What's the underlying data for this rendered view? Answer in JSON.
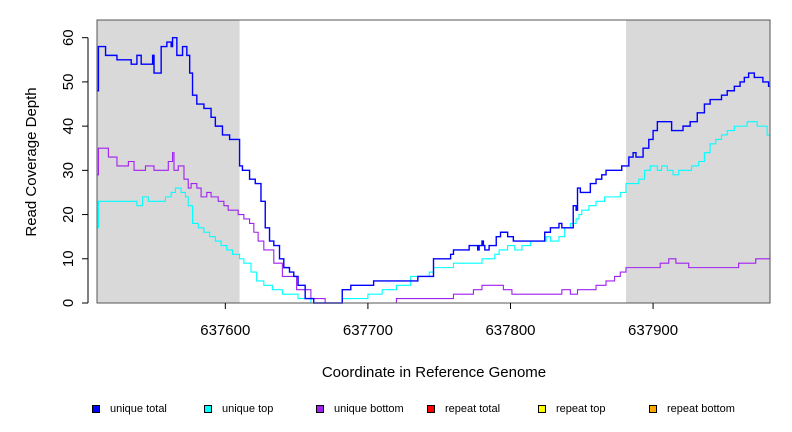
{
  "chart_data": {
    "type": "line",
    "title": "",
    "xlabel": "Coordinate in Reference Genome",
    "ylabel": "Read Coverage Depth",
    "xlim": [
      637510,
      637982
    ],
    "ylim": [
      0,
      64
    ],
    "xticks": [
      637600,
      637700,
      637800,
      637900
    ],
    "xtick_labels": [
      "637600",
      "637700",
      "637800",
      "637900"
    ],
    "yticks": [
      0,
      10,
      20,
      30,
      40,
      50,
      60
    ],
    "ytick_labels": [
      "0",
      "10",
      "20",
      "30",
      "40",
      "50",
      "60"
    ],
    "shaded_regions": [
      {
        "x_start": 637510,
        "x_end": 637610,
        "color": "#d9d9d9"
      },
      {
        "x_start": 637881,
        "x_end": 637982,
        "color": "#d9d9d9"
      }
    ],
    "series": [
      {
        "name": "unique total",
        "color": "#0000ff",
        "x": [
          637510,
          637511,
          637516,
          637524,
          637534,
          637538,
          637541,
          637549,
          637550,
          637555,
          637559,
          637562,
          637563,
          637566,
          637570,
          637573,
          637575,
          637577,
          637580,
          637585,
          637590,
          637593,
          637598,
          637603,
          637605,
          637610,
          637612,
          637617,
          637621,
          637625,
          637628,
          637631,
          637634,
          637638,
          637641,
          637645,
          637648,
          637651,
          637656,
          637660,
          637662,
          637667,
          637672,
          637677,
          637682,
          637685,
          637688,
          637691,
          637696,
          637704,
          637710,
          637719,
          637725,
          637735,
          637745,
          637746,
          637758,
          637760,
          637771,
          637777,
          637778,
          637780,
          637781,
          637782,
          637785,
          637790,
          637793,
          637798,
          637802,
          637810,
          637819,
          637824,
          637828,
          637834,
          637836,
          637838,
          637844,
          637846,
          637847,
          637849,
          637851,
          637856,
          637860,
          637864,
          637867,
          637871,
          637878,
          637880,
          637883,
          637886,
          637888,
          637893,
          637897,
          637900,
          637903,
          637908,
          637913,
          637917,
          637921,
          637926,
          637931,
          637936,
          637940,
          637944,
          637948,
          637952,
          637957,
          637961,
          637964,
          637967,
          637971,
          637977,
          637981,
          637982
        ],
        "values": [
          48,
          58,
          56,
          55,
          54,
          56,
          54,
          56,
          52,
          58,
          59,
          58,
          60,
          56,
          58,
          56,
          52,
          47,
          45,
          44,
          42,
          40,
          38,
          37,
          37,
          31,
          30,
          28,
          27,
          23,
          17,
          14,
          13,
          10,
          8,
          7,
          6,
          4,
          1,
          1,
          0,
          0,
          0,
          0,
          3,
          3,
          4,
          4,
          4,
          5,
          5,
          5,
          5,
          6,
          6,
          10,
          11,
          12,
          13,
          12,
          13,
          14,
          13,
          12,
          13,
          15,
          16,
          15,
          14,
          14,
          14,
          16,
          17,
          18,
          17,
          17,
          22,
          21,
          26,
          25,
          25,
          27,
          28,
          29,
          30,
          30,
          31,
          31,
          33,
          34,
          33,
          35,
          37,
          39,
          41,
          41,
          39,
          39,
          40,
          41,
          43,
          45,
          46,
          46,
          47,
          48,
          49,
          50,
          51,
          52,
          51,
          50,
          49,
          49
        ]
      },
      {
        "name": "unique top",
        "color": "#00ffff",
        "x": [
          637510,
          637511,
          637520,
          637530,
          637535,
          637538,
          637542,
          637546,
          637550,
          637558,
          637562,
          637565,
          637569,
          637572,
          637574,
          637577,
          637581,
          637585,
          637589,
          637593,
          637597,
          637601,
          637605,
          637610,
          637613,
          637618,
          637622,
          637627,
          637633,
          637640,
          637651,
          637660,
          637670,
          637682,
          637688,
          637700,
          637710,
          637720,
          637730,
          637743,
          637746,
          637760,
          637771,
          637780,
          637787,
          637789,
          637792,
          637795,
          637798,
          637803,
          637808,
          637814,
          637818,
          637825,
          637828,
          637832,
          637834,
          637838,
          637842,
          637846,
          637848,
          637850,
          637853,
          637855,
          637860,
          637866,
          637872,
          637877,
          637881,
          637886,
          637890,
          637894,
          637898,
          637903,
          637906,
          637910,
          637914,
          637918,
          637922,
          637927,
          637932,
          637936,
          637940,
          637944,
          637948,
          637952,
          637957,
          637961,
          637966,
          637970,
          637973,
          637977,
          637980,
          637982
        ],
        "values": [
          17,
          23,
          23,
          23,
          23,
          22,
          24,
          23,
          23,
          24,
          25,
          26,
          25,
          24,
          22,
          18,
          17,
          16,
          15,
          14,
          13,
          12,
          11,
          10,
          9,
          7,
          5,
          4,
          3,
          2,
          1,
          0,
          0,
          1,
          1,
          2,
          3,
          4,
          6,
          7,
          8,
          9,
          9,
          10,
          10,
          11,
          12,
          12,
          13,
          12,
          13,
          14,
          14,
          15,
          14,
          14,
          15,
          17,
          18,
          19,
          20,
          21,
          21,
          22,
          23,
          24,
          24,
          25,
          27,
          27,
          28,
          30,
          31,
          30,
          31,
          30,
          29,
          30,
          30,
          31,
          32,
          34,
          36,
          37,
          38,
          39,
          40,
          40,
          41,
          41,
          40,
          40,
          38,
          38
        ]
      },
      {
        "name": "unique bottom",
        "color": "#a020f0",
        "x": [
          637510,
          637511,
          637518,
          637524,
          637532,
          637536,
          637544,
          637550,
          637555,
          637560,
          637563,
          637564,
          637567,
          637571,
          637574,
          637576,
          637580,
          637583,
          637587,
          637590,
          637595,
          637599,
          637602,
          637609,
          637613,
          637617,
          637620,
          637623,
          637627,
          637634,
          637640,
          637650,
          637660,
          637670,
          637680,
          637690,
          637700,
          637720,
          637735,
          637750,
          637760,
          637774,
          637780,
          637795,
          637801,
          637815,
          637827,
          637836,
          637842,
          637847,
          637853,
          637860,
          637867,
          637873,
          637877,
          637881,
          637900,
          637905,
          637911,
          637916,
          637925,
          637940,
          637960,
          637965,
          637972,
          637982
        ],
        "values": [
          29,
          35,
          33,
          31,
          32,
          30,
          31,
          30,
          30,
          32,
          34,
          30,
          31,
          28,
          26,
          27,
          26,
          24,
          25,
          24,
          23,
          22,
          21,
          20,
          19,
          18,
          16,
          14,
          12,
          9,
          6,
          3,
          1,
          0,
          0,
          0,
          0,
          1,
          1,
          1,
          2,
          3,
          4,
          3,
          2,
          2,
          2,
          3,
          2,
          3,
          3,
          4,
          5,
          6,
          7,
          8,
          8,
          9,
          10,
          9,
          8,
          8,
          9,
          9,
          10,
          11
        ]
      },
      {
        "name": "repeat total",
        "color": "#ff0000",
        "x": [
          637510,
          637982
        ],
        "values": [
          0,
          0
        ]
      },
      {
        "name": "repeat top",
        "color": "#ffff00",
        "x": [
          637510,
          637982
        ],
        "values": [
          0,
          0
        ]
      },
      {
        "name": "repeat bottom",
        "color": "#ffa500",
        "x": [
          637510,
          637982
        ],
        "values": [
          0,
          0
        ]
      }
    ],
    "legend": {
      "position": "bottom",
      "items": [
        {
          "label": "unique total",
          "color": "#0000ff"
        },
        {
          "label": "unique top",
          "color": "#00ffff"
        },
        {
          "label": "unique bottom",
          "color": "#a020f0"
        },
        {
          "label": "repeat total",
          "color": "#ff0000"
        },
        {
          "label": "repeat top",
          "color": "#ffff00"
        },
        {
          "label": "repeat bottom",
          "color": "#ffa500"
        }
      ]
    }
  }
}
